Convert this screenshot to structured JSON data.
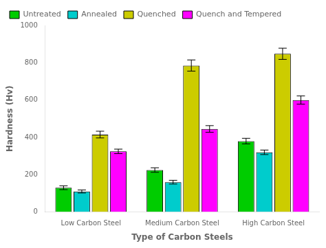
{
  "chart_data": {
    "type": "bar",
    "categories": [
      "Low Carbon Steel",
      "Medium Carbon Steel",
      "High Carbon Steel"
    ],
    "series": [
      {
        "name": "Untreated",
        "color": "#00cc00",
        "values": [
          130,
          225,
          380
        ],
        "errors": [
          10,
          12,
          15
        ]
      },
      {
        "name": "Annealed",
        "color": "#00cccc",
        "values": [
          110,
          160,
          320
        ],
        "errors": [
          8,
          10,
          12
        ]
      },
      {
        "name": "Quenched",
        "color": "#cccc00",
        "values": [
          415,
          785,
          848
        ],
        "errors": [
          18,
          30,
          30
        ]
      },
      {
        "name": "Quench and Tempered",
        "color": "#ff00ff",
        "values": [
          325,
          445,
          600
        ],
        "errors": [
          12,
          18,
          22
        ]
      }
    ],
    "xlabel": "Type of Carbon Steels",
    "ylabel": "Hardness (Hv)",
    "ylim": [
      0,
      1000
    ],
    "yticks": [
      0,
      200,
      400,
      600,
      800,
      1000
    ],
    "grid": false,
    "legend": "upper left"
  }
}
